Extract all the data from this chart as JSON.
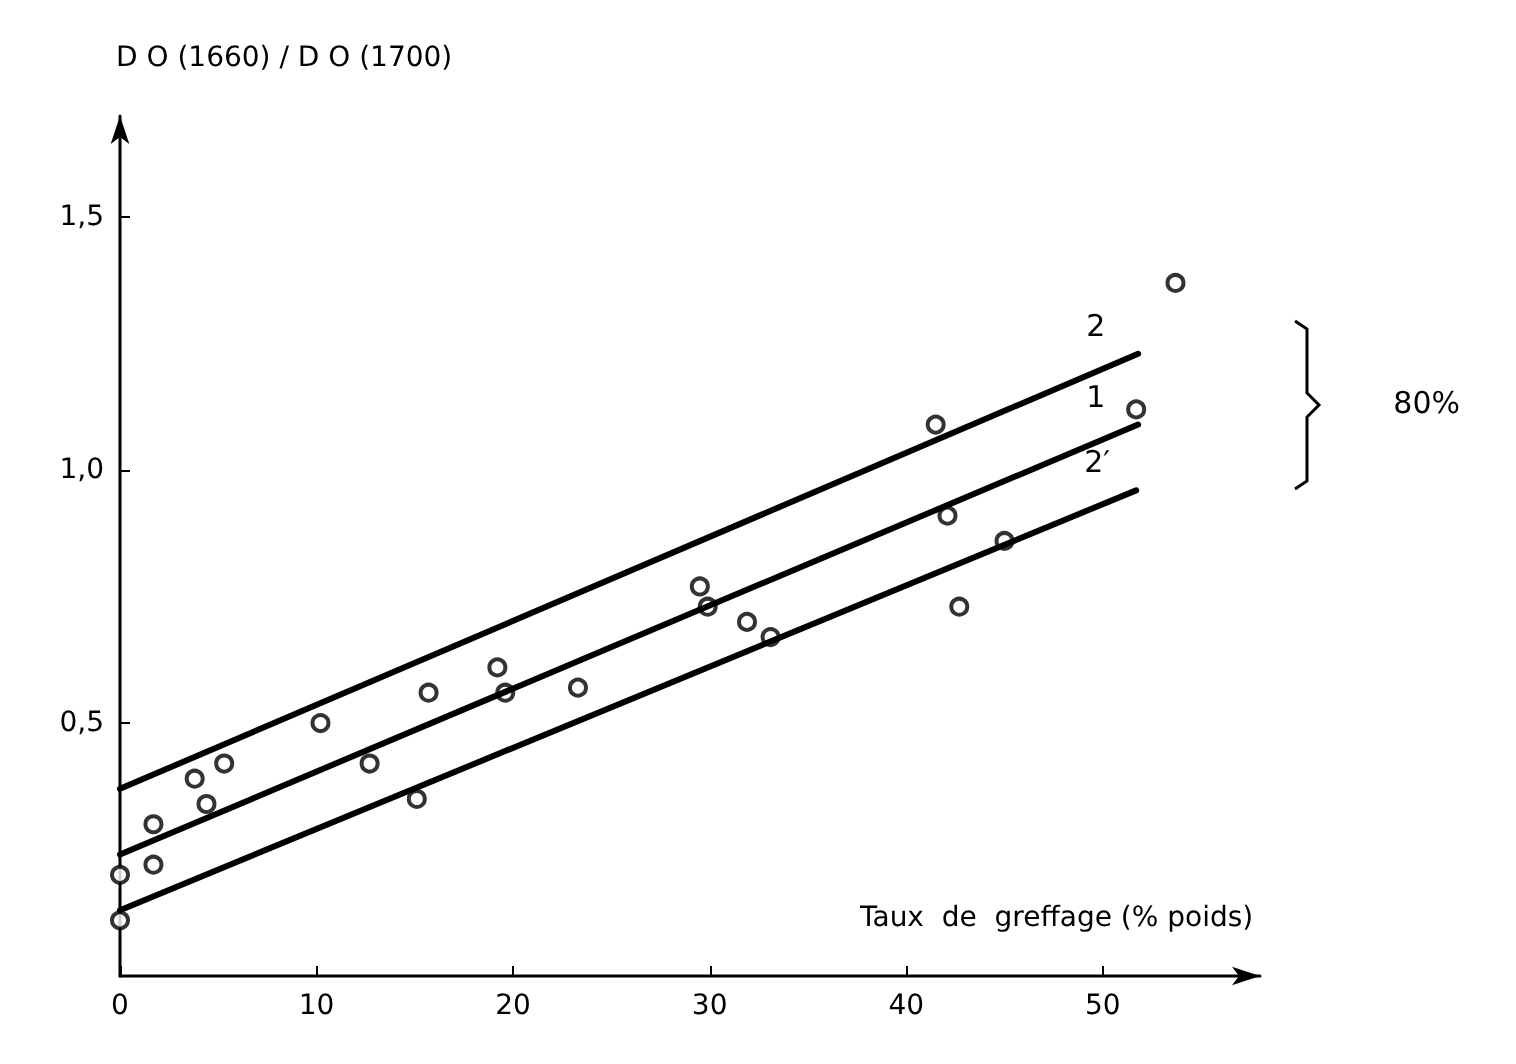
{
  "chart_data": {
    "type": "scatter",
    "ylabel": "D O (1660) / D O (1700)",
    "xlabel": "Taux  de  greffage (% poids)",
    "xlim": [
      0,
      58
    ],
    "ylim": [
      0,
      1.7
    ],
    "xticks": [
      0,
      10,
      20,
      30,
      40,
      50
    ],
    "yticks": [
      {
        "value": 0.5,
        "label": "0,5"
      },
      {
        "value": 1.0,
        "label": "1,0"
      },
      {
        "value": 1.5,
        "label": "1,5"
      }
    ],
    "grid": false,
    "marker": "circle",
    "series": [
      {
        "color": "#000000",
        "x": [
          0,
          0,
          1.7,
          1.7,
          3.8,
          4.4,
          5.3,
          10.2,
          12.7,
          15.1,
          15.7,
          19.2,
          19.6,
          23.3,
          29.5,
          29.9,
          31.9,
          33.1,
          41.5,
          42.1,
          42.7,
          45.0,
          51.7,
          53.7
        ],
        "values": [
          0.2,
          0.11,
          0.22,
          0.3,
          0.39,
          0.34,
          0.42,
          0.5,
          0.42,
          0.35,
          0.56,
          0.61,
          0.56,
          0.57,
          0.77,
          0.73,
          0.7,
          0.67,
          1.09,
          0.91,
          0.73,
          0.86,
          1.12,
          1.37
        ]
      },
      {
        "type": "line",
        "name": "1",
        "color": "#000000",
        "marker": "none",
        "line_style": "solid",
        "x": [
          0,
          51.8
        ],
        "values": [
          0.24,
          1.09
        ]
      },
      {
        "type": "line",
        "name": "2",
        "color": "#000000",
        "marker": "none",
        "line_style": "solid",
        "x": [
          0,
          51.8
        ],
        "values": [
          0.37,
          1.23
        ]
      },
      {
        "type": "line",
        "name": "2′",
        "color": "#000000",
        "marker": "none",
        "line_style": "solid",
        "x": [
          0,
          51.7
        ],
        "values": [
          0.13,
          0.96
        ]
      }
    ],
    "annotations": [
      "80%"
    ]
  }
}
